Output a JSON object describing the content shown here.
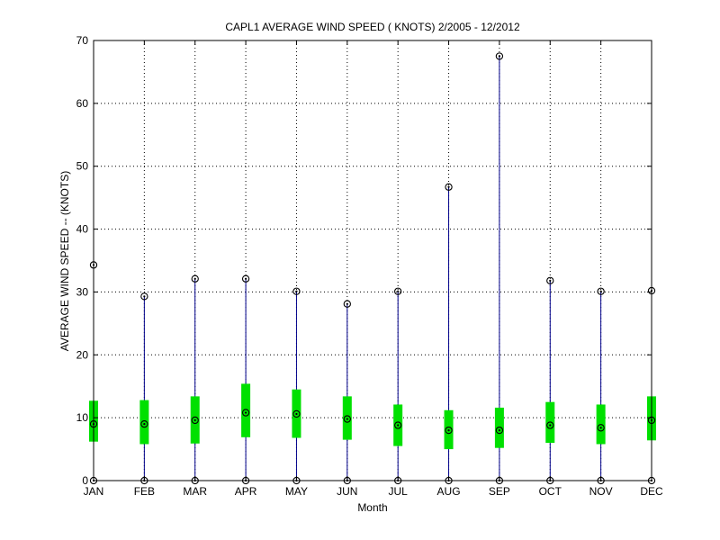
{
  "chart_data": {
    "type": "boxplot",
    "title": "CAPL1  AVERAGE WIND SPEED ( KNOTS) 2/2005 - 12/2012",
    "xlabel": "Month",
    "ylabel": "AVERAGE WIND SPEED -- (KNOTS)",
    "ylim": [
      0,
      70
    ],
    "yticks": [
      0,
      10,
      20,
      30,
      40,
      50,
      60,
      70
    ],
    "grid": true,
    "categories": [
      "JAN",
      "FEB",
      "MAR",
      "APR",
      "MAY",
      "JUN",
      "JUL",
      "AUG",
      "SEP",
      "OCT",
      "NOV",
      "DEC"
    ],
    "series": [
      {
        "min": [
          0,
          0,
          0,
          0,
          0,
          0,
          0,
          0,
          0,
          0,
          0,
          0
        ],
        "q1": [
          6.2,
          5.8,
          5.9,
          6.9,
          6.8,
          6.5,
          5.5,
          5.0,
          5.2,
          6.0,
          5.8,
          6.4
        ],
        "median": [
          9.0,
          9.0,
          9.6,
          10.8,
          10.6,
          9.8,
          8.8,
          8.0,
          8.0,
          8.8,
          8.4,
          9.6
        ],
        "q3": [
          12.7,
          12.8,
          13.4,
          15.4,
          14.5,
          13.4,
          12.1,
          11.2,
          11.6,
          12.5,
          12.1,
          13.4
        ],
        "max": [
          34.3,
          29.3,
          32.1,
          32.1,
          30.1,
          28.1,
          30.1,
          46.7,
          67.5,
          31.8,
          30.1,
          30.2
        ]
      }
    ],
    "colors": {
      "whisker": "#00008b",
      "box": "#00e000",
      "marker": "#000000",
      "grid": "#000000"
    }
  }
}
